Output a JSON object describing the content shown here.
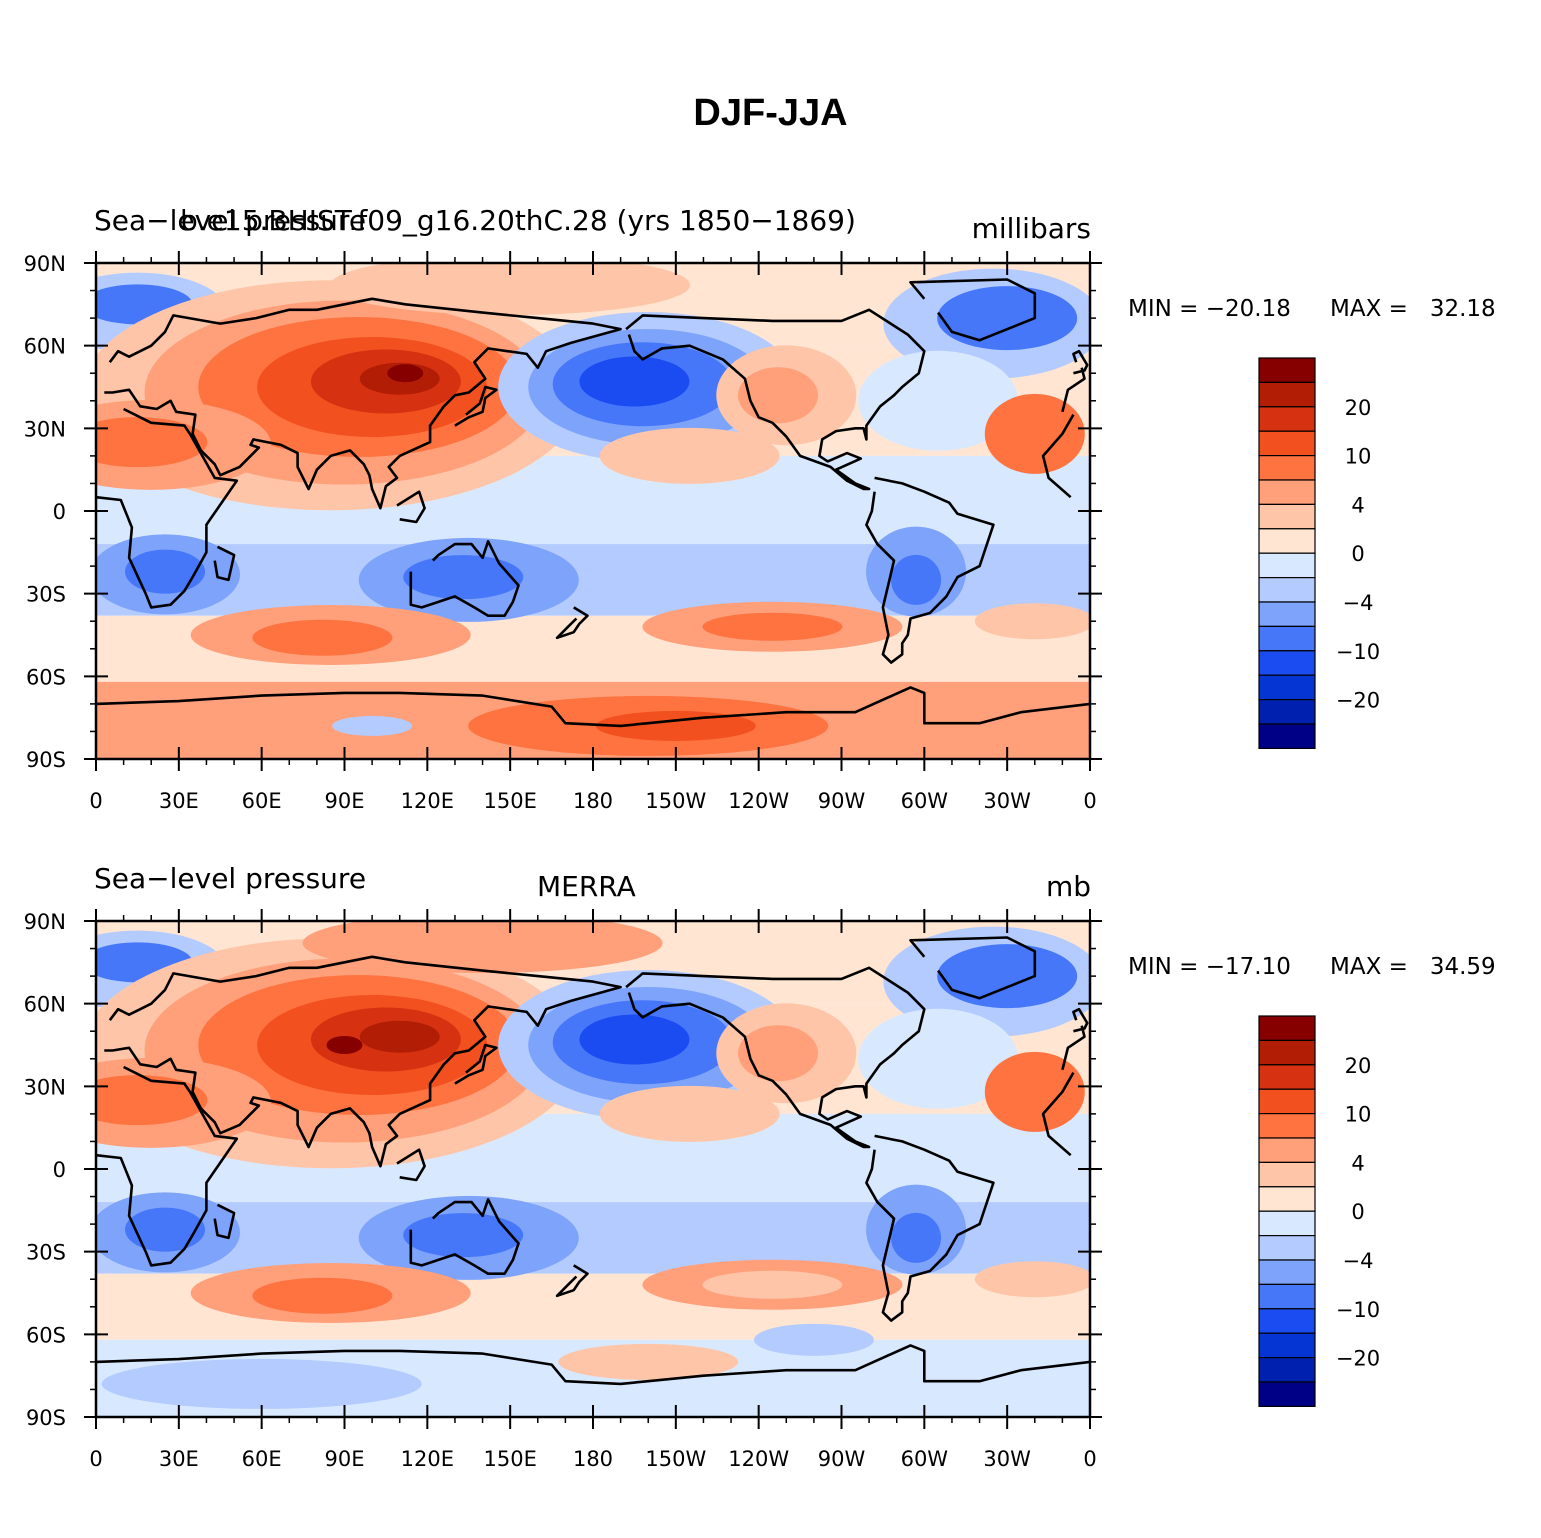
{
  "title": "DJF-JJA",
  "colors": {
    "scale": [
      "#000087",
      "#0020b0",
      "#0536d4",
      "#1b4cf2",
      "#4677f9",
      "#7ea3fb",
      "#b3cbff",
      "#d8e9ff",
      "#ffe5d2",
      "#ffc5a8",
      "#ffa07a",
      "#fe7340",
      "#f2501e",
      "#d63212",
      "#b21d05",
      "#870000"
    ],
    "coastline": "#000000"
  },
  "colorbar": {
    "tick_labels": [
      "20",
      "10",
      "4",
      "0",
      "−4",
      "−10",
      "−20"
    ]
  },
  "panels": [
    {
      "id": "model",
      "left_label": "Sea−level pressure",
      "center_label": "b.e15.BHIST.f09_g16.20thC.28 (yrs 1850−1869)",
      "right_label": "millibars",
      "min_label": "MIN = −20.18",
      "max_label": "MAX =   32.18"
    },
    {
      "id": "obs",
      "left_label": "Sea−level pressure",
      "center_label": "MERRA",
      "right_label": "mb",
      "min_label": "MIN = −17.10",
      "max_label": "MAX =   34.59"
    }
  ],
  "axes": {
    "lat_labels": [
      "90N",
      "60N",
      "30N",
      "0",
      "30S",
      "60S",
      "90S"
    ],
    "lon_labels": [
      "0",
      "30E",
      "60E",
      "90E",
      "120E",
      "150E",
      "180",
      "150W",
      "120W",
      "90W",
      "60W",
      "30W",
      "0"
    ]
  }
}
